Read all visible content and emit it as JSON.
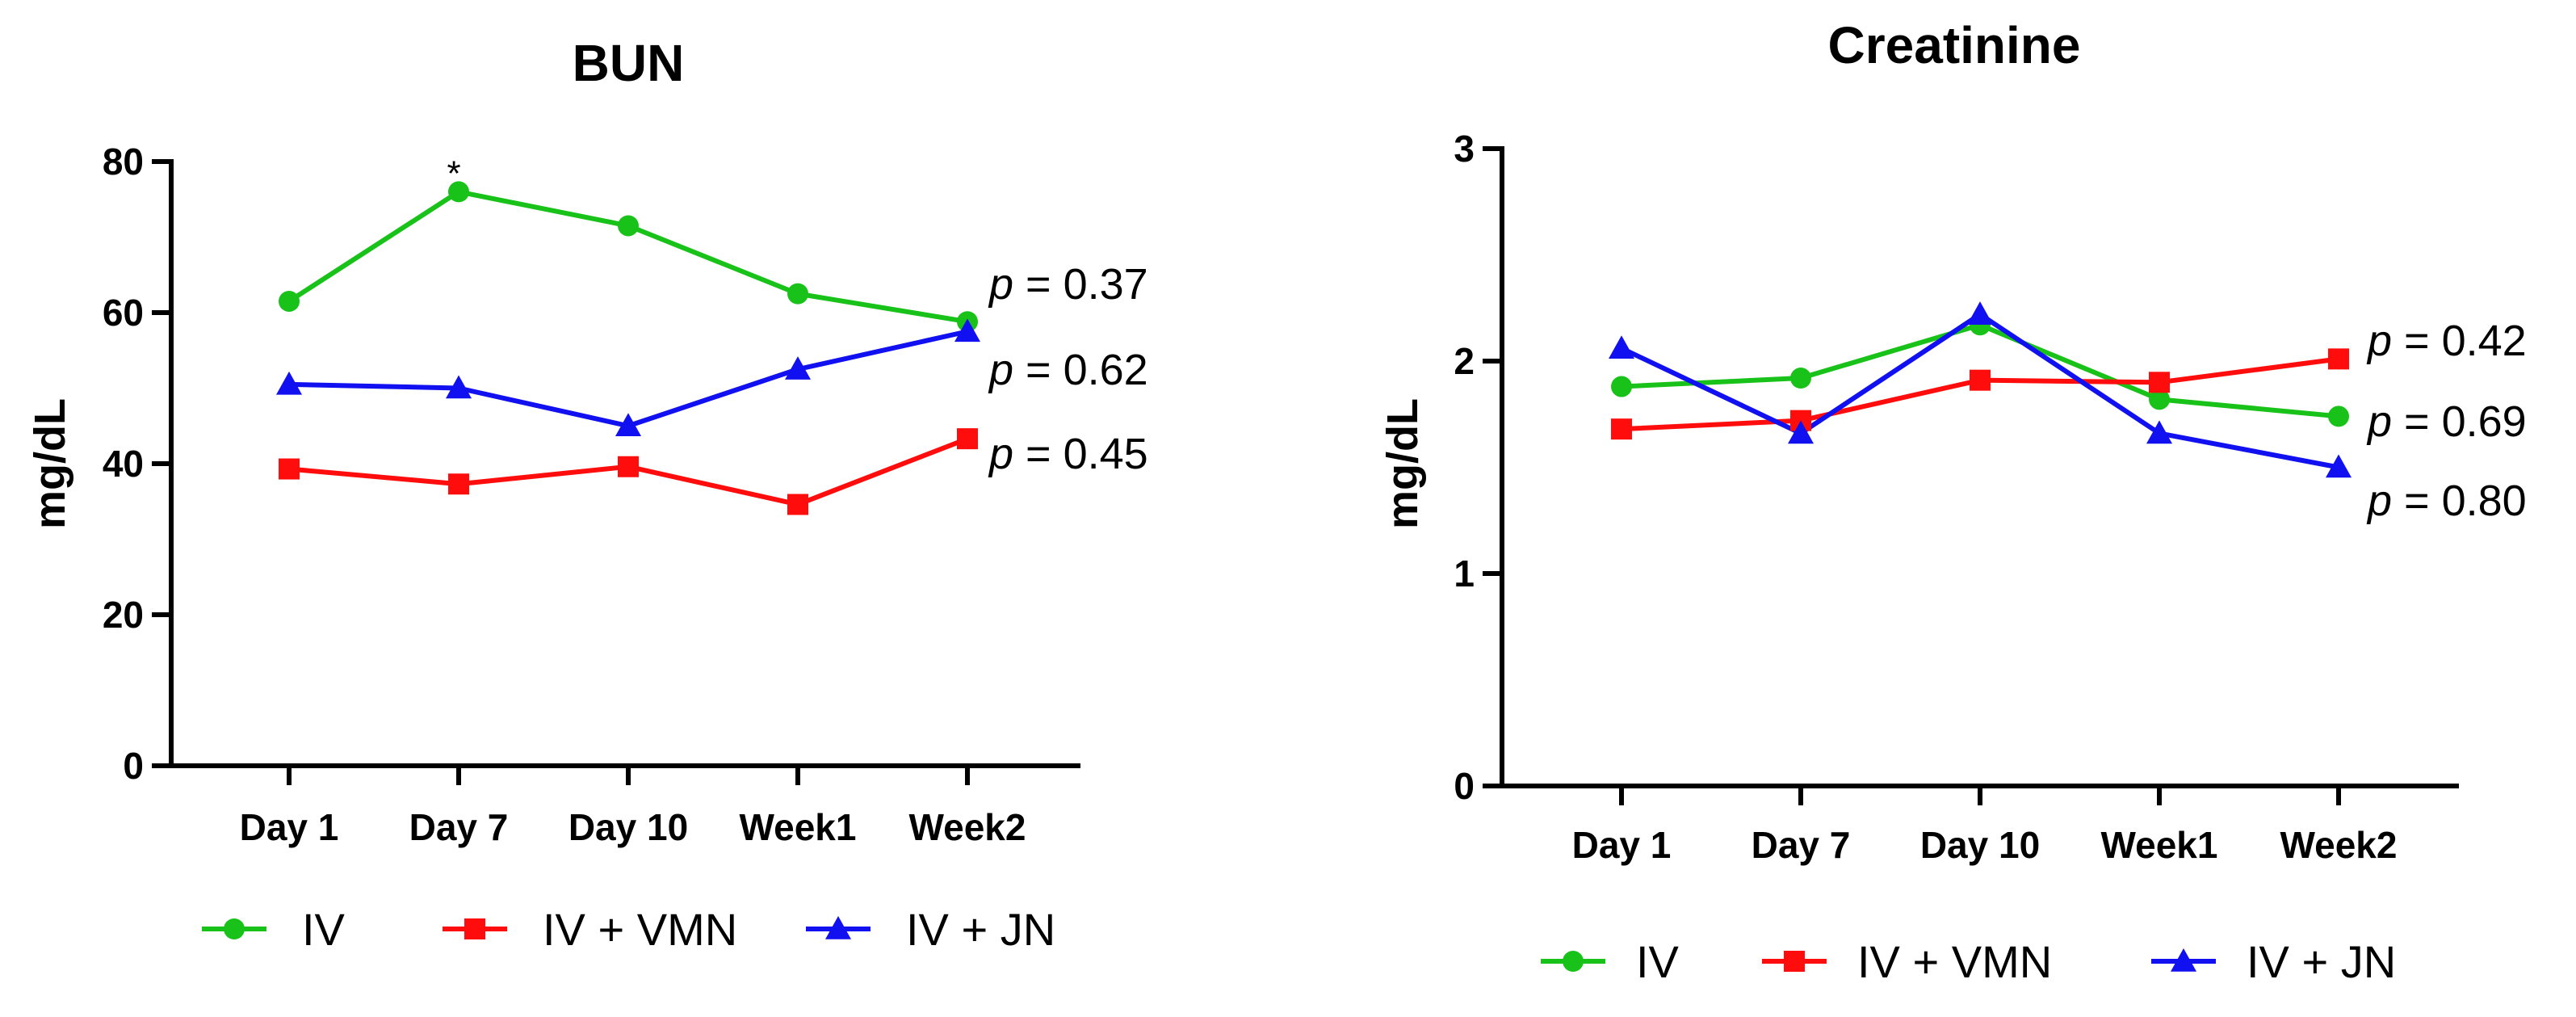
{
  "chart_data": [
    {
      "type": "line",
      "title": "BUN",
      "xlabel": "",
      "ylabel": "mg/dL",
      "ylim": [
        0,
        80
      ],
      "yticks": [
        0,
        20,
        40,
        60,
        80
      ],
      "categories": [
        "Day 1",
        "Day 7",
        "Day 10",
        "Week1",
        "Week2"
      ],
      "series": [
        {
          "name": "IV",
          "color": "#19c219",
          "marker": "circle",
          "values": [
            61.5,
            76,
            71.5,
            62.5,
            58.8
          ]
        },
        {
          "name": "IV + VMN",
          "color": "#ff0d0d",
          "marker": "square",
          "values": [
            39.3,
            37.3,
            39.6,
            34.6,
            43.3
          ]
        },
        {
          "name": "IV + JN",
          "color": "#1010f0",
          "marker": "triangle",
          "values": [
            50.5,
            50,
            45,
            52.5,
            57.5
          ]
        }
      ],
      "annotations": [
        {
          "text": "*",
          "category": "Day 7",
          "series": "IV"
        },
        {
          "prefix": "p",
          "text": " = 0.37"
        },
        {
          "prefix": "p",
          "text": " = 0.62"
        },
        {
          "prefix": "p",
          "text": " = 0.45"
        }
      ]
    },
    {
      "type": "line",
      "title": "Creatinine",
      "xlabel": "",
      "ylabel": "mg/dL",
      "ylim": [
        0,
        3
      ],
      "yticks": [
        0,
        1,
        2,
        3
      ],
      "categories": [
        "Day 1",
        "Day 7",
        "Day 10",
        "Week1",
        "Week2"
      ],
      "series": [
        {
          "name": "IV",
          "color": "#19c219",
          "marker": "circle",
          "values": [
            1.88,
            1.92,
            2.17,
            1.82,
            1.74
          ]
        },
        {
          "name": "IV + VMN",
          "color": "#ff0d0d",
          "marker": "square",
          "values": [
            1.68,
            1.72,
            1.91,
            1.9,
            2.01
          ]
        },
        {
          "name": "IV + JN",
          "color": "#1010f0",
          "marker": "triangle",
          "values": [
            2.06,
            1.66,
            2.22,
            1.66,
            1.5
          ]
        }
      ],
      "annotations": [
        {
          "prefix": "p",
          "text": " = 0.42"
        },
        {
          "prefix": "p",
          "text": " = 0.69"
        },
        {
          "prefix": "p",
          "text": " = 0.80"
        }
      ]
    }
  ]
}
